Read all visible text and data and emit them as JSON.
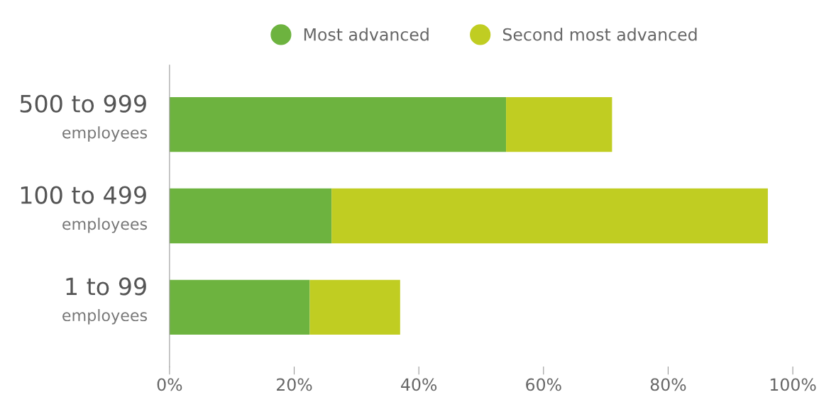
{
  "chart_data": {
    "type": "bar",
    "orientation": "horizontal",
    "stacked": true,
    "categories": [
      "500 to 999\nemployees",
      "100 to 499\nemployees",
      "1 to 99\nemployees"
    ],
    "series": [
      {
        "name": "Most advanced",
        "color": "#6db33f",
        "values": [
          54,
          26,
          22.5
        ]
      },
      {
        "name": "Second most advanced",
        "color": "#c0cd22",
        "values": [
          17,
          70,
          14.5
        ]
      }
    ],
    "xlim": [
      0,
      100
    ],
    "xticks": [
      {
        "value": 0,
        "label": "0%"
      },
      {
        "value": 20,
        "label": "20%"
      },
      {
        "value": 40,
        "label": "40%"
      },
      {
        "value": 60,
        "label": "60%"
      },
      {
        "value": 80,
        "label": "80%"
      },
      {
        "value": 100,
        "label": "100%"
      }
    ],
    "legend": "top",
    "grid": false
  }
}
